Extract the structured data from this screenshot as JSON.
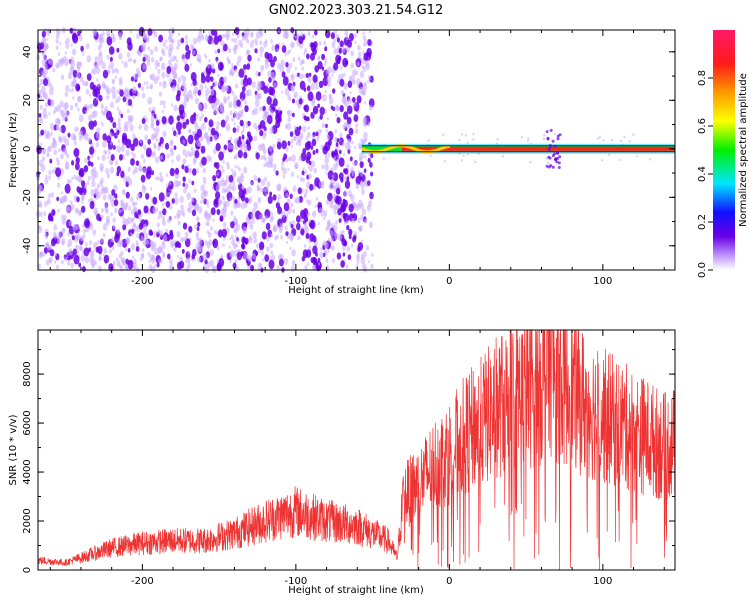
{
  "title": "GN02.2023.303.21.54.G12",
  "colors": {
    "snr_line": "#ee3333",
    "ridge": "#222222",
    "dot_dark": "#6a00e6",
    "dot_light": "#c9a8ff",
    "axis": "#000000"
  },
  "chart_data": [
    {
      "type": "heatmap",
      "xlabel": "Height of straight line (km)",
      "ylabel": "Frequency (Hz)",
      "xlim": [
        -268,
        147
      ],
      "ylim": [
        -50,
        49
      ],
      "xticks": [
        -200,
        -100,
        0,
        100
      ],
      "yticks": [
        40,
        20,
        0,
        -20,
        -40
      ],
      "xtick_labels": [
        "-200",
        "-100",
        "0",
        "100"
      ],
      "ytick_labels": [
        "40",
        "20",
        "0",
        "-20",
        "-40"
      ],
      "noise_region_x": [
        -268,
        -50
      ],
      "ridge_frequency_hz": 0,
      "ridge_x_range": [
        -57,
        147
      ],
      "colorbar": {
        "label": "Normalized spectral amplitude",
        "range": [
          0.0,
          1.0
        ],
        "ticks": [
          0.0,
          0.2,
          0.4,
          0.6,
          0.8
        ],
        "tick_labels": [
          "0.0",
          "0.2",
          "0.4",
          "0.6",
          "0.8"
        ],
        "colormap": "rainbow (white-purple-blue-cyan-green-yellow-orange-red-pink)"
      }
    },
    {
      "type": "line",
      "xlabel": "Height of straight line (km)",
      "ylabel": "SNR (10 * v/v)",
      "xlim": [
        -268,
        147
      ],
      "ylim": [
        0,
        9800
      ],
      "xticks": [
        -200,
        -100,
        0,
        100
      ],
      "yticks": [
        0,
        2000,
        4000,
        6000,
        8000
      ],
      "xtick_labels": [
        "-200",
        "-100",
        "0",
        "100"
      ],
      "ytick_labels": [
        "0",
        "2000",
        "4000",
        "6000",
        "8000"
      ],
      "envelope": {
        "x": [
          -268,
          -250,
          -240,
          -220,
          -200,
          -180,
          -160,
          -140,
          -120,
          -100,
          -80,
          -60,
          -40,
          -34,
          -30,
          -20,
          -10,
          0,
          10,
          20,
          30,
          40,
          50,
          60,
          65,
          70,
          80,
          90,
          100,
          110,
          120,
          130,
          140,
          147
        ],
        "y": [
          400,
          300,
          500,
          900,
          1100,
          1200,
          1200,
          1500,
          2000,
          2400,
          2000,
          1800,
          1200,
          500,
          3000,
          3500,
          4300,
          4800,
          5500,
          6000,
          6600,
          7000,
          7300,
          7700,
          8600,
          7800,
          7300,
          6700,
          6300,
          6000,
          5700,
          5400,
          5000,
          5200
        ]
      }
    }
  ]
}
